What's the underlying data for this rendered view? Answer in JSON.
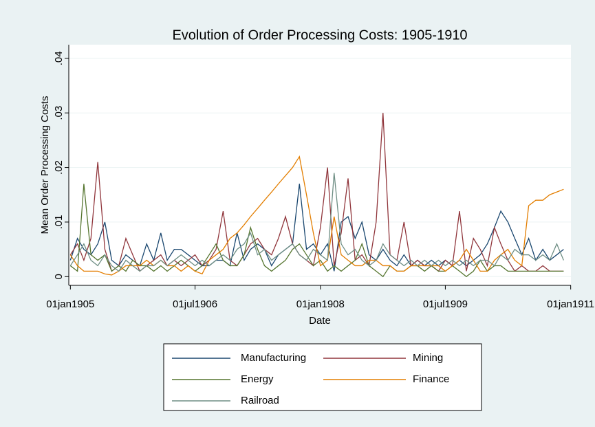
{
  "chart_data": {
    "type": "line",
    "title": "Evolution of Order Processing Costs: 1905-1910",
    "y_label": "Mean Order Processing Costs",
    "x_label": "Date",
    "x": [
      "1905-01-01",
      "1905-02-01",
      "1905-03-01",
      "1905-04-01",
      "1905-05-01",
      "1905-06-01",
      "1905-07-01",
      "1905-08-01",
      "1905-09-01",
      "1905-10-01",
      "1905-11-01",
      "1905-12-01",
      "1906-01-01",
      "1906-02-01",
      "1906-03-01",
      "1906-04-01",
      "1906-05-01",
      "1906-06-01",
      "1906-07-01",
      "1906-08-01",
      "1906-09-01",
      "1906-10-01",
      "1906-11-01",
      "1906-12-01",
      "1907-01-01",
      "1907-02-01",
      "1907-03-01",
      "1907-04-01",
      "1907-05-01",
      "1907-06-01",
      "1907-07-01",
      "1907-08-01",
      "1907-09-01",
      "1907-10-01",
      "1907-11-01",
      "1907-12-01",
      "1908-01-01",
      "1908-02-01",
      "1908-03-01",
      "1908-04-01",
      "1908-05-01",
      "1908-06-01",
      "1908-07-01",
      "1908-08-01",
      "1908-09-01",
      "1908-10-01",
      "1908-11-01",
      "1908-12-01",
      "1909-01-01",
      "1909-02-01",
      "1909-03-01",
      "1909-04-01",
      "1909-05-01",
      "1909-06-01",
      "1909-07-01",
      "1909-08-01",
      "1909-09-01",
      "1909-10-01",
      "1909-11-01",
      "1909-12-01",
      "1910-01-01",
      "1910-02-01",
      "1910-03-01",
      "1910-04-01",
      "1910-05-01",
      "1910-06-01",
      "1910-07-01",
      "1910-08-01",
      "1910-09-01",
      "1910-10-01",
      "1910-11-01",
      "1910-12-01"
    ],
    "series": [
      {
        "name": "Manufacturing",
        "color": "#1a476f",
        "values": [
          0.003,
          0.007,
          0.005,
          0.004,
          0.006,
          0.01,
          0.003,
          0.002,
          0.004,
          0.003,
          0.002,
          0.006,
          0.003,
          0.008,
          0.003,
          0.005,
          0.005,
          0.004,
          0.003,
          0.002,
          0.002,
          0.003,
          0.003,
          0.002,
          0.008,
          0.003,
          0.005,
          0.006,
          0.005,
          0.002,
          0.004,
          0.005,
          0.006,
          0.017,
          0.005,
          0.006,
          0.004,
          0.006,
          0.001,
          0.01,
          0.011,
          0.007,
          0.01,
          0.004,
          0.003,
          0.005,
          0.003,
          0.002,
          0.004,
          0.002,
          0.003,
          0.002,
          0.003,
          0.002,
          0.003,
          0.002,
          0.003,
          0.002,
          0.003,
          0.004,
          0.006,
          0.009,
          0.012,
          0.01,
          0.007,
          0.004,
          0.007,
          0.003,
          0.005,
          0.003,
          0.004,
          0.005
        ]
      },
      {
        "name": "Mining",
        "color": "#90353b",
        "values": [
          0.004,
          0.006,
          0.003,
          0.007,
          0.021,
          0.005,
          0.001,
          0.002,
          0.007,
          0.004,
          0.001,
          0.002,
          0.003,
          0.004,
          0.002,
          0.003,
          0.002,
          0.003,
          0.004,
          0.002,
          0.003,
          0.005,
          0.012,
          0.003,
          0.002,
          0.004,
          0.006,
          0.007,
          0.005,
          0.004,
          0.007,
          0.011,
          0.006,
          0.004,
          0.003,
          0.002,
          0.009,
          0.02,
          0.002,
          0.008,
          0.018,
          0.003,
          0.004,
          0.002,
          0.01,
          0.03,
          0.004,
          0.003,
          0.01,
          0.002,
          0.003,
          0.002,
          0.002,
          0.001,
          0.003,
          0.002,
          0.012,
          0.001,
          0.007,
          0.005,
          0.002,
          0.009,
          0.006,
          0.003,
          0.001,
          0.002,
          0.001,
          0.001,
          0.002,
          0.001,
          0.001,
          0.001
        ]
      },
      {
        "name": "Energy",
        "color": "#55752f",
        "values": [
          0.002,
          0.001,
          0.017,
          0.004,
          0.003,
          0.004,
          0.001,
          0.002,
          0.001,
          0.003,
          0.002,
          0.002,
          0.001,
          0.002,
          0.001,
          0.002,
          0.003,
          0.002,
          0.001,
          0.002,
          0.004,
          0.006,
          0.003,
          0.002,
          0.002,
          0.004,
          0.009,
          0.005,
          0.002,
          0.001,
          0.002,
          0.003,
          0.005,
          0.006,
          0.004,
          0.002,
          0.003,
          0.001,
          0.002,
          0.001,
          0.002,
          0.003,
          0.006,
          0.002,
          0.001,
          0.0,
          0.002,
          0.001,
          0.001,
          0.002,
          0.002,
          0.001,
          0.002,
          0.001,
          0.001,
          0.002,
          0.001,
          0.0,
          0.001,
          0.003,
          0.001,
          0.002,
          0.002,
          0.001,
          0.001,
          0.001,
          0.001,
          0.001,
          0.001,
          0.001,
          0.001,
          0.001
        ]
      },
      {
        "name": "Finance",
        "color": "#e37e00",
        "values": [
          0.004,
          0.002,
          0.001,
          0.001,
          0.001,
          0.0005,
          0.0003,
          0.001,
          0.002,
          0.002,
          0.002,
          0.003,
          0.002,
          0.003,
          0.002,
          0.002,
          0.001,
          0.002,
          0.001,
          0.0005,
          0.003,
          0.004,
          0.005,
          0.007,
          0.008,
          0.0095,
          0.011,
          0.0125,
          0.014,
          0.0155,
          0.017,
          0.0185,
          0.02,
          0.022,
          0.015,
          0.008,
          0.002,
          0.003,
          0.011,
          0.004,
          0.003,
          0.002,
          0.002,
          0.003,
          0.003,
          0.002,
          0.002,
          0.001,
          0.001,
          0.002,
          0.002,
          0.002,
          0.002,
          0.002,
          0.001,
          0.002,
          0.003,
          0.005,
          0.003,
          0.001,
          0.001,
          0.003,
          0.004,
          0.005,
          0.003,
          0.002,
          0.013,
          0.014,
          0.014,
          0.015,
          0.0155,
          0.016
        ]
      },
      {
        "name": "Railroad",
        "color": "#6e8e84",
        "values": [
          0.002,
          0.004,
          0.006,
          0.003,
          0.002,
          0.004,
          0.002,
          0.001,
          0.003,
          0.002,
          0.001,
          0.002,
          0.002,
          0.003,
          0.002,
          0.003,
          0.004,
          0.003,
          0.002,
          0.003,
          0.002,
          0.003,
          0.004,
          0.003,
          0.005,
          0.006,
          0.008,
          0.004,
          0.005,
          0.003,
          0.004,
          0.005,
          0.006,
          0.004,
          0.003,
          0.005,
          0.004,
          0.003,
          0.019,
          0.006,
          0.004,
          0.005,
          0.003,
          0.002,
          0.003,
          0.006,
          0.004,
          0.003,
          0.002,
          0.003,
          0.002,
          0.003,
          0.002,
          0.003,
          0.002,
          0.003,
          0.002,
          0.003,
          0.002,
          0.003,
          0.003,
          0.002,
          0.004,
          0.003,
          0.005,
          0.004,
          0.004,
          0.003,
          0.004,
          0.003,
          0.006,
          0.003
        ]
      }
    ],
    "xlim": [
      "1904-12-25",
      "1911-01-02"
    ],
    "xticks": [
      {
        "value": "1905-01-01",
        "label": "01jan1905"
      },
      {
        "value": "1906-07-01",
        "label": "01jul1906"
      },
      {
        "value": "1908-01-01",
        "label": "01jan1908"
      },
      {
        "value": "1909-07-01",
        "label": "01jul1909"
      },
      {
        "value": "1911-01-01",
        "label": "01jan1911"
      }
    ],
    "ylim": [
      -0.0016,
      0.0425
    ],
    "yticks": [
      0,
      {
        "value": 0.01,
        "label": ".01"
      },
      {
        "value": 0.02,
        "label": ".02"
      },
      {
        "value": 0.03,
        "label": ".03"
      },
      {
        "value": 0.04,
        "label": ".04"
      }
    ],
    "grid": true,
    "legend": "bottom"
  }
}
